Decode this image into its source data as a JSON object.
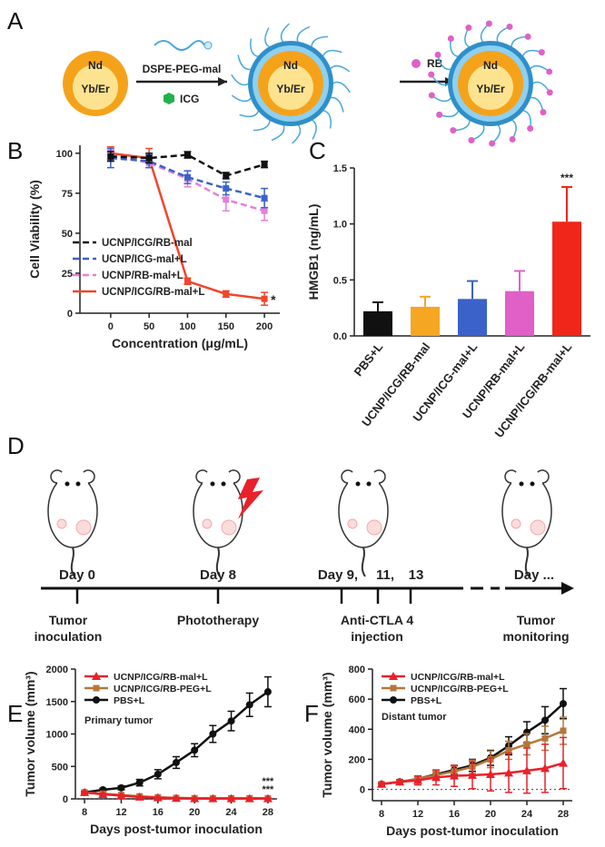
{
  "scheme_a": {
    "panel": "A",
    "particles": [
      {
        "top": "Nd",
        "core": "Yb/Er"
      },
      {
        "top": "Nd",
        "core": "Yb/Er"
      },
      {
        "top": "Nd",
        "core": "Yb/Er"
      }
    ],
    "step1": "DSPE-PEG-mal",
    "step1_sub": "ICG",
    "step2": "RB"
  },
  "timeline_d": {
    "panel": "D",
    "days": [
      "Day 0",
      "Day 8",
      "Day 9,",
      "11,",
      "13",
      "Day ..."
    ],
    "events": [
      [
        "Tumor",
        "inoculation"
      ],
      [
        "Phototherapy"
      ],
      [
        "Anti-CTLA 4",
        "injection"
      ],
      [
        "Tumor",
        "monitoring"
      ]
    ]
  },
  "chart_data": [
    {
      "type": "line",
      "panel": "B",
      "xlabel": "Concentration (μg/mL)",
      "ylabel": "Cell Viability (%)",
      "x": [
        0,
        50,
        100,
        150,
        200
      ],
      "xlim": [
        -40,
        220
      ],
      "xticks": [
        0,
        50,
        100,
        150,
        200
      ],
      "ylim": [
        0,
        105
      ],
      "yticks": [
        0,
        25,
        50,
        75,
        100
      ],
      "legend": "lower left",
      "annotation": "*",
      "series": [
        {
          "name": "UCNP/ICG/RB-mal",
          "color": "#111111",
          "linestyle": "dashed",
          "marker": "square",
          "values": [
            98,
            97,
            99,
            86,
            93
          ],
          "errors": [
            3,
            3,
            2,
            2,
            2
          ]
        },
        {
          "name": "UCNP/ICG-mal+L",
          "color": "#3a62c9",
          "linestyle": "dashed",
          "marker": "square",
          "values": [
            97,
            95,
            85,
            78,
            72
          ],
          "errors": [
            6,
            4,
            4,
            4,
            6
          ]
        },
        {
          "name": "UCNP/RB-mal+L",
          "color": "#e77fd6",
          "linestyle": "dashed",
          "marker": "square",
          "values": [
            99,
            94,
            84,
            71,
            64
          ],
          "errors": [
            3,
            3,
            5,
            7,
            6
          ]
        },
        {
          "name": "UCNP/ICG/RB-mal+L",
          "color": "#f0462b",
          "linestyle": "solid",
          "marker": "square",
          "values": [
            100,
            97,
            20,
            12,
            9
          ],
          "errors": [
            4,
            6,
            2,
            2,
            4
          ]
        }
      ]
    },
    {
      "type": "bar",
      "panel": "C",
      "ylabel": "HMGB1 (ng/mL)",
      "categories": [
        "PBS+L",
        "UCNP/ICG/RB-mal",
        "UCNP/ICG-mal+L",
        "UCNP/RB-mal+L",
        "UCNP/ICG/RB-mal+L"
      ],
      "values": [
        0.22,
        0.26,
        0.33,
        0.4,
        1.02
      ],
      "errors": [
        0.08,
        0.09,
        0.16,
        0.18,
        0.31
      ],
      "colors": [
        "#111111",
        "#f5a623",
        "#3a62c9",
        "#e060c8",
        "#f0261b"
      ],
      "ylim": [
        0,
        1.5
      ],
      "yticks": [
        {
          "value": 0,
          "label": "0.0"
        },
        {
          "value": 0.5,
          "label": "0.5"
        },
        {
          "value": 1,
          "label": "1.0"
        },
        {
          "value": 1.5,
          "label": "1.5"
        }
      ],
      "annotation": "***"
    },
    {
      "type": "line",
      "panel": "E",
      "xlabel": "Days post-tumor inoculation",
      "ylabel": "Tumor volume (mm³)",
      "note": "Primary tumor",
      "significance": [
        "***",
        "***"
      ],
      "x": [
        8,
        10,
        12,
        14,
        16,
        18,
        20,
        22,
        24,
        26,
        28
      ],
      "xlim": [
        7,
        29
      ],
      "xticks": [
        8,
        12,
        16,
        20,
        24,
        28
      ],
      "ylim": [
        0,
        2000
      ],
      "yticks": [
        0,
        500,
        1000,
        1500,
        2000
      ],
      "legend": "upper left",
      "series": [
        {
          "name": "UCNP/ICG/RB-mal+L",
          "color": "#e8212a",
          "linestyle": "solid",
          "marker": "triangle",
          "values": [
            100,
            70,
            50,
            30,
            20,
            10,
            5,
            5,
            5,
            5,
            5
          ],
          "errors": [
            15,
            12,
            10,
            8,
            6,
            5,
            3,
            3,
            3,
            3,
            3
          ]
        },
        {
          "name": "UCNP/ICG/RB-PEG+L",
          "color": "#b5773a",
          "linestyle": "solid",
          "marker": "square",
          "values": [
            100,
            80,
            60,
            40,
            25,
            15,
            10,
            10,
            10,
            10,
            10
          ],
          "errors": [
            15,
            12,
            10,
            8,
            6,
            5,
            4,
            4,
            4,
            4,
            4
          ]
        },
        {
          "name": "PBS+L",
          "color": "#111111",
          "linestyle": "solid",
          "marker": "circle",
          "values": [
            100,
            140,
            170,
            250,
            380,
            560,
            750,
            1000,
            1200,
            1450,
            1650
          ],
          "errors": [
            20,
            20,
            30,
            50,
            70,
            90,
            100,
            130,
            150,
            180,
            230
          ]
        }
      ]
    },
    {
      "type": "line",
      "panel": "F",
      "xlabel": "Days post-tumor inoculation",
      "ylabel": "Tumor volume (mm³)",
      "note": "Distant tumor",
      "x": [
        8,
        10,
        12,
        14,
        16,
        18,
        20,
        22,
        24,
        26,
        28
      ],
      "xlim": [
        7,
        29
      ],
      "xticks": [
        8,
        12,
        16,
        20,
        24,
        28
      ],
      "ylim": [
        -75,
        800
      ],
      "yticks": [
        0,
        200,
        400,
        600,
        800
      ],
      "legend": "upper left",
      "series": [
        {
          "name": "UCNP/ICG/RB-mal+L",
          "color": "#e8212a",
          "linestyle": "solid",
          "marker": "triangle",
          "values": [
            35,
            50,
            60,
            80,
            90,
            95,
            100,
            110,
            125,
            140,
            175
          ],
          "errors": [
            10,
            15,
            30,
            50,
            70,
            90,
            110,
            130,
            150,
            160,
            170
          ]
        },
        {
          "name": "UCNP/ICG/RB-PEG+L",
          "color": "#b5773a",
          "linestyle": "solid",
          "marker": "square",
          "values": [
            35,
            50,
            70,
            95,
            120,
            150,
            200,
            260,
            300,
            340,
            390
          ],
          "errors": [
            5,
            8,
            15,
            25,
            35,
            45,
            55,
            60,
            70,
            80,
            90
          ]
        },
        {
          "name": "PBS+L",
          "color": "#111111",
          "linestyle": "solid",
          "marker": "circle",
          "values": [
            35,
            50,
            70,
            100,
            130,
            160,
            210,
            290,
            380,
            460,
            570
          ],
          "errors": [
            5,
            8,
            15,
            20,
            30,
            40,
            50,
            60,
            70,
            90,
            100
          ]
        }
      ]
    }
  ]
}
